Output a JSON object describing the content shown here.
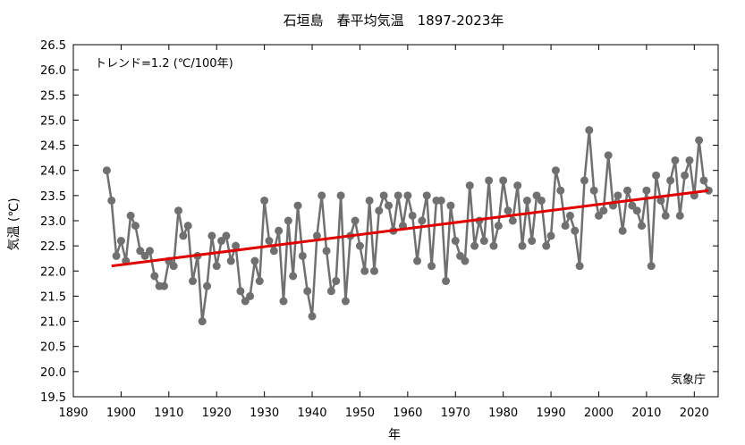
{
  "chart_data": {
    "type": "line",
    "title": "石垣島　春平均気温　1897-2023年",
    "xlabel": "年",
    "ylabel": "気温 (℃)",
    "annotation": "トレンド=1.2 (℃/100年)",
    "credit": "気象庁",
    "xlim": [
      1890,
      2025
    ],
    "ylim": [
      19.5,
      26.5
    ],
    "x_ticks": [
      1890,
      1900,
      1910,
      1920,
      1930,
      1940,
      1950,
      1960,
      1970,
      1980,
      1990,
      2000,
      2010,
      2020
    ],
    "y_ticks": [
      19.5,
      20.0,
      20.5,
      21.0,
      21.5,
      22.0,
      22.5,
      23.0,
      23.5,
      24.0,
      24.5,
      25.0,
      25.5,
      26.0,
      26.5
    ],
    "grid": false,
    "series": [
      {
        "color": "#707070",
        "x": [
          1897,
          1898,
          1899,
          1900,
          1901,
          1902,
          1903,
          1904,
          1905,
          1906,
          1907,
          1908,
          1909,
          1910,
          1911,
          1912,
          1913,
          1914,
          1915,
          1916,
          1917,
          1918,
          1919,
          1920,
          1921,
          1922,
          1923,
          1924,
          1925,
          1926,
          1927,
          1928,
          1929,
          1930,
          1931,
          1932,
          1933,
          1934,
          1935,
          1936,
          1937,
          1938,
          1939,
          1940,
          1941,
          1942,
          1943,
          1944,
          1945,
          1946,
          1947,
          1948,
          1949,
          1950,
          1951,
          1952,
          1953,
          1954,
          1955,
          1956,
          1957,
          1958,
          1959,
          1960,
          1961,
          1962,
          1963,
          1964,
          1965,
          1966,
          1967,
          1968,
          1969,
          1970,
          1971,
          1972,
          1973,
          1974,
          1975,
          1976,
          1977,
          1978,
          1979,
          1980,
          1981,
          1982,
          1983,
          1984,
          1985,
          1986,
          1987,
          1988,
          1989,
          1990,
          1991,
          1992,
          1993,
          1994,
          1995,
          1996,
          1997,
          1998,
          1999,
          2000,
          2001,
          2002,
          2003,
          2004,
          2005,
          2006,
          2007,
          2008,
          2009,
          2010,
          2011,
          2012,
          2013,
          2014,
          2015,
          2016,
          2017,
          2018,
          2019,
          2020,
          2021,
          2022,
          2023
        ],
        "y": [
          24.0,
          23.4,
          22.3,
          22.6,
          22.2,
          23.1,
          22.9,
          22.4,
          22.3,
          22.4,
          21.9,
          21.7,
          21.7,
          22.2,
          22.1,
          23.2,
          22.7,
          22.9,
          21.8,
          22.3,
          21.0,
          21.7,
          22.7,
          22.1,
          22.6,
          22.7,
          22.2,
          22.5,
          21.6,
          21.4,
          21.5,
          22.2,
          21.8,
          23.4,
          22.6,
          22.4,
          22.8,
          21.4,
          23.0,
          21.9,
          23.3,
          22.3,
          21.6,
          21.1,
          22.7,
          23.5,
          22.4,
          21.6,
          21.8,
          23.5,
          21.4,
          22.7,
          23.0,
          22.5,
          22.0,
          23.4,
          22.0,
          23.2,
          23.5,
          23.3,
          22.8,
          23.5,
          22.9,
          23.5,
          23.1,
          22.2,
          23.0,
          23.5,
          22.1,
          23.4,
          23.4,
          21.8,
          23.3,
          22.6,
          22.3,
          22.2,
          23.7,
          22.5,
          23.0,
          22.6,
          23.8,
          22.5,
          22.9,
          23.8,
          23.2,
          23.0,
          23.7,
          22.5,
          23.4,
          22.6,
          23.5,
          23.4,
          22.5,
          22.7,
          24.0,
          23.6,
          22.9,
          23.1,
          22.8,
          22.1,
          23.8,
          24.8,
          23.6,
          23.1,
          23.2,
          24.3,
          23.3,
          23.5,
          22.8,
          23.6,
          23.3,
          23.2,
          22.9,
          23.6,
          22.1,
          23.9,
          23.4,
          23.1,
          23.8,
          24.2,
          23.1,
          23.9,
          24.2,
          23.5,
          24.6,
          23.8,
          23.6
        ]
      }
    ],
    "trend": {
      "color": "#e00000",
      "x": [
        1898,
        2023
      ],
      "y": [
        22.1,
        23.6
      ]
    }
  }
}
